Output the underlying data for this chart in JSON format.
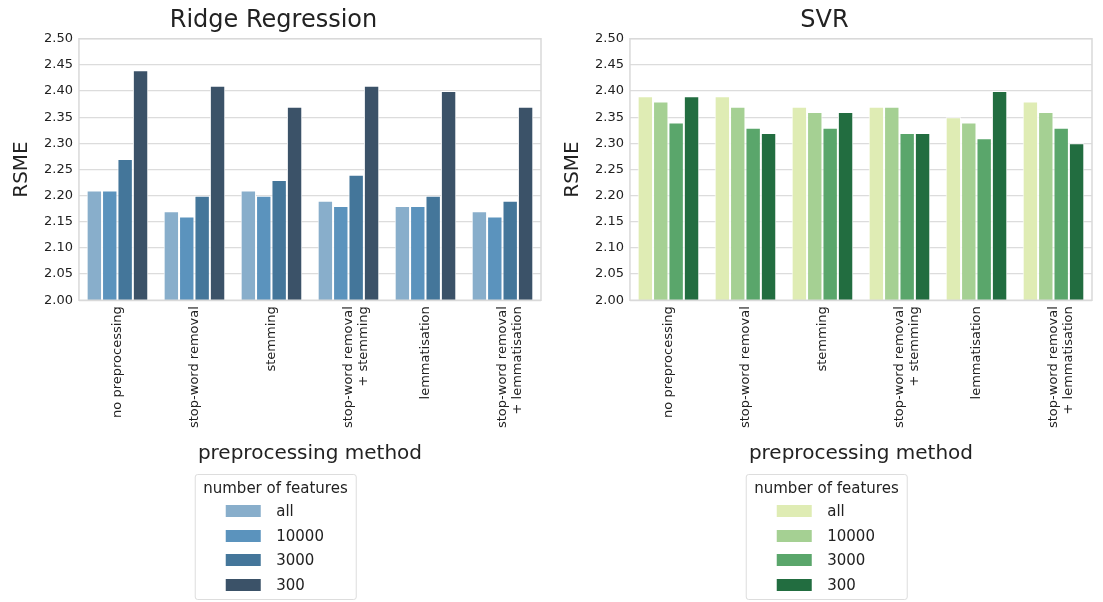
{
  "chart_data": [
    {
      "type": "bar",
      "title": "Ridge Regression",
      "xlabel": "preprocessing method",
      "ylabel": "RSME",
      "legend_title": "number of features",
      "legend": "bottom",
      "grid": "y",
      "categories": [
        "no preprocessing",
        "stop-word removal",
        "stemming",
        "stop-word removal\n+ stemming",
        "lemmatisation",
        "stop-word removal\n+ lemmatisation"
      ],
      "ylim": [
        2.0,
        2.5
      ],
      "yticks": [
        {
          "value": 2.0,
          "label": "2.00"
        },
        {
          "value": 2.05,
          "label": "2.05"
        },
        {
          "value": 2.1,
          "label": "2.10"
        },
        2.15,
        {
          "value": 2.2,
          "label": "2.20"
        },
        2.25,
        {
          "value": 2.3,
          "label": "2.30"
        },
        2.35,
        {
          "value": 2.4,
          "label": "2.40"
        },
        2.45,
        {
          "value": 2.5,
          "label": "2.50"
        }
      ],
      "series": [
        {
          "name": "all",
          "color": "#88aecb",
          "values": [
            2.21,
            2.17,
            2.21,
            2.19,
            2.18,
            2.17
          ]
        },
        {
          "name": "10000",
          "color": "#5b93bd",
          "values": [
            2.21,
            2.16,
            2.2,
            2.18,
            2.18,
            2.16
          ]
        },
        {
          "name": "3000",
          "color": "#44769a",
          "values": [
            2.27,
            2.2,
            2.23,
            2.24,
            2.2,
            2.19
          ]
        },
        {
          "name": "300",
          "color": "#3b5268",
          "values": [
            2.44,
            2.41,
            2.37,
            2.41,
            2.4,
            2.37
          ]
        }
      ]
    },
    {
      "type": "bar",
      "title": "SVR",
      "xlabel": "preprocessing method",
      "ylabel": "RSME",
      "legend_title": "number of features",
      "legend": "bottom",
      "grid": "y",
      "categories": [
        "no preprocessing",
        "stop-word removal",
        "stemming",
        "stop-word removal\n+ stemming",
        "lemmatisation",
        "stop-word removal\n+ lemmatisation"
      ],
      "ylim": [
        2.0,
        2.5
      ],
      "yticks": [
        {
          "value": 2.0,
          "label": "2.00"
        },
        {
          "value": 2.05,
          "label": "2.05"
        },
        {
          "value": 2.1,
          "label": "2.10"
        },
        2.15,
        {
          "value": 2.2,
          "label": "2.20"
        },
        2.25,
        {
          "value": 2.3,
          "label": "2.30"
        },
        2.35,
        {
          "value": 2.4,
          "label": "2.40"
        },
        2.45,
        {
          "value": 2.5,
          "label": "2.50"
        }
      ],
      "series": [
        {
          "name": "all",
          "color": "#dfecb4",
          "values": [
            2.39,
            2.39,
            2.37,
            2.37,
            2.35,
            2.38
          ]
        },
        {
          "name": "10000",
          "color": "#a5d093",
          "values": [
            2.38,
            2.37,
            2.36,
            2.37,
            2.34,
            2.36
          ]
        },
        {
          "name": "3000",
          "color": "#5aa66b",
          "values": [
            2.34,
            2.33,
            2.33,
            2.32,
            2.31,
            2.33
          ]
        },
        {
          "name": "300",
          "color": "#226d40",
          "values": [
            2.39,
            2.32,
            2.36,
            2.32,
            2.4,
            2.3
          ]
        }
      ]
    }
  ]
}
